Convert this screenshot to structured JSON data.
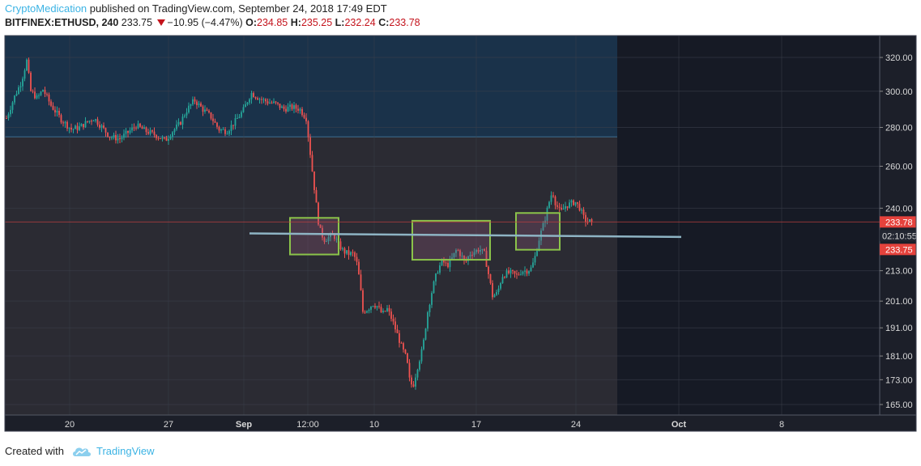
{
  "header": {
    "author": "CryptoMedication",
    "publish_text": " published on TradingView.com, September 24, 2018 17:49 EDT",
    "symbol": "BITFINEX:ETHUSD, 240",
    "last": "233.75",
    "change": "−10.95 (−4.47%)",
    "o_label": "O:",
    "o_val": "234.85",
    "h_label": "H:",
    "h_val": "235.25",
    "l_label": "L:",
    "l_val": "232.24",
    "c_label": "C:",
    "c_val": "233.78"
  },
  "footer": {
    "created_with": "Created with",
    "brand": "TradingView"
  },
  "colors": {
    "up": "#26a69a",
    "down": "#ef5350",
    "bg_future": "#161a25",
    "bg_chart": "#2b2b33",
    "bg_blue_zone": "#18334c",
    "trendline": "#8eb4c4",
    "box_border": "#8bc34a",
    "price_tag": "#e5423c"
  },
  "chart_data": {
    "type": "candlestick",
    "symbol": "BITFINEX:ETHUSD",
    "timeframe": "240",
    "x_tick_labels": [
      "20",
      "27",
      "Sep",
      "12:00",
      "10",
      "17",
      "24",
      "Oct",
      "8"
    ],
    "y_tick_labels": [
      "320.00",
      "300.00",
      "280.00",
      "260.00",
      "240.00",
      "233.78",
      "02:10:55",
      "233.75",
      "213.00",
      "201.00",
      "191.00",
      "181.00",
      "173.00",
      "165.00"
    ],
    "y_ticks": [
      320,
      300,
      280,
      260,
      240,
      213,
      201,
      191,
      181,
      173,
      165
    ],
    "y_scale": "log",
    "ylim": [
      161,
      328
    ],
    "last_price": 233.78,
    "bid_price": 233.75,
    "countdown": "02:10:55",
    "horizontal_level": 275,
    "trendline": [
      228.7,
      227.2
    ],
    "boxes": [
      {
        "low": 219.7,
        "high": 235.6
      },
      {
        "low": 217.5,
        "high": 234.3
      },
      {
        "low": 221.7,
        "high": 237.8
      }
    ],
    "price_path": [
      [
        0,
        285
      ],
      [
        10,
        297
      ],
      [
        18,
        305
      ],
      [
        25,
        318
      ],
      [
        30,
        300
      ],
      [
        38,
        296
      ],
      [
        45,
        301
      ],
      [
        55,
        292
      ],
      [
        68,
        284
      ],
      [
        80,
        279
      ],
      [
        90,
        280
      ],
      [
        100,
        283
      ],
      [
        108,
        285
      ],
      [
        118,
        280
      ],
      [
        128,
        275
      ],
      [
        140,
        274
      ],
      [
        152,
        278
      ],
      [
        160,
        281
      ],
      [
        172,
        278
      ],
      [
        184,
        276
      ],
      [
        196,
        273
      ],
      [
        205,
        278
      ],
      [
        214,
        282
      ],
      [
        222,
        289
      ],
      [
        232,
        295
      ],
      [
        242,
        290
      ],
      [
        252,
        286
      ],
      [
        262,
        279
      ],
      [
        272,
        278
      ],
      [
        282,
        283
      ],
      [
        292,
        289
      ],
      [
        302,
        299
      ],
      [
        312,
        296
      ],
      [
        322,
        294
      ],
      [
        332,
        293
      ],
      [
        342,
        290
      ],
      [
        352,
        291
      ],
      [
        362,
        290
      ],
      [
        370,
        285
      ],
      [
        374,
        270
      ],
      [
        378,
        256
      ],
      [
        382,
        243
      ],
      [
        386,
        231
      ],
      [
        392,
        226
      ],
      [
        398,
        227
      ],
      [
        404,
        228
      ],
      [
        410,
        224
      ],
      [
        416,
        221
      ],
      [
        422,
        220
      ],
      [
        428,
        220
      ],
      [
        432,
        217
      ],
      [
        436,
        209
      ],
      [
        440,
        197
      ],
      [
        446,
        198
      ],
      [
        452,
        200
      ],
      [
        458,
        199
      ],
      [
        464,
        196
      ],
      [
        470,
        198
      ],
      [
        476,
        194
      ],
      [
        482,
        189
      ],
      [
        488,
        184
      ],
      [
        494,
        180
      ],
      [
        498,
        172
      ],
      [
        502,
        171
      ],
      [
        508,
        178
      ],
      [
        514,
        184
      ],
      [
        520,
        197
      ],
      [
        526,
        206
      ],
      [
        532,
        213
      ],
      [
        538,
        217
      ],
      [
        544,
        215
      ],
      [
        550,
        218
      ],
      [
        556,
        222
      ],
      [
        562,
        219
      ],
      [
        566,
        216
      ],
      [
        572,
        220
      ],
      [
        578,
        221
      ],
      [
        584,
        222
      ],
      [
        590,
        220
      ],
      [
        596,
        210
      ],
      [
        600,
        203
      ],
      [
        606,
        204
      ],
      [
        612,
        211
      ],
      [
        618,
        212
      ],
      [
        624,
        212
      ],
      [
        630,
        211
      ],
      [
        636,
        213
      ],
      [
        642,
        213
      ],
      [
        648,
        214
      ],
      [
        652,
        218
      ],
      [
        658,
        227
      ],
      [
        664,
        234
      ],
      [
        670,
        243
      ],
      [
        674,
        248
      ],
      [
        678,
        242
      ],
      [
        684,
        238
      ],
      [
        690,
        241
      ],
      [
        696,
        242
      ],
      [
        702,
        243
      ],
      [
        708,
        240
      ],
      [
        712,
        236
      ],
      [
        716,
        234
      ],
      [
        720,
        234
      ],
      [
        724,
        233.78
      ]
    ]
  }
}
